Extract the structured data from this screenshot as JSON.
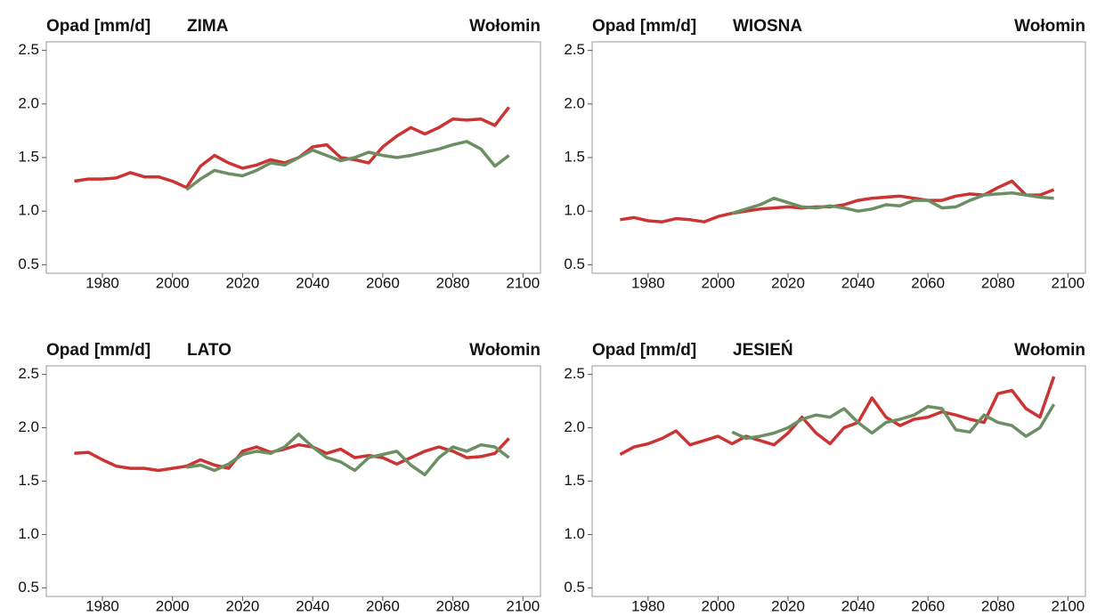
{
  "chart_data": [
    {
      "type": "line",
      "title": "Opad [mm/d]",
      "subtitle": "ZIMA",
      "location": "Wołomin",
      "x": [
        1972,
        1976,
        1980,
        1984,
        1988,
        1992,
        1996,
        2000,
        2004,
        2008,
        2012,
        2016,
        2020,
        2024,
        2028,
        2032,
        2036,
        2040,
        2044,
        2048,
        2052,
        2056,
        2060,
        2064,
        2068,
        2072,
        2076,
        2080,
        2084,
        2088,
        2092,
        2096
      ],
      "series": [
        {
          "color": "#cc3333",
          "values": [
            1.28,
            1.3,
            1.3,
            1.31,
            1.36,
            1.32,
            1.32,
            1.28,
            1.22,
            1.42,
            1.52,
            1.45,
            1.4,
            1.43,
            1.48,
            1.45,
            1.5,
            1.6,
            1.62,
            1.5,
            1.48,
            1.45,
            1.6,
            1.7,
            1.78,
            1.72,
            1.78,
            1.86,
            1.85,
            1.86,
            1.8,
            1.97
          ]
        },
        {
          "color": "#6b8e62",
          "values": [
            null,
            null,
            null,
            null,
            null,
            null,
            null,
            null,
            1.2,
            1.3,
            1.38,
            1.35,
            1.33,
            1.38,
            1.45,
            1.43,
            1.5,
            1.57,
            1.52,
            1.47,
            1.5,
            1.55,
            1.52,
            1.5,
            1.52,
            1.55,
            1.58,
            1.62,
            1.65,
            1.58,
            1.42,
            1.52
          ]
        }
      ],
      "xlim": [
        1964,
        2105
      ],
      "xticks": [
        1980,
        2000,
        2020,
        2040,
        2060,
        2080,
        2100
      ],
      "ylim": [
        0.42,
        2.58
      ],
      "yticks": [
        0.5,
        {
          "value": 1.0,
          "label": "1.0"
        },
        1.5,
        {
          "value": 2.0,
          "label": "2.0"
        },
        2.5
      ]
    },
    {
      "type": "line",
      "title": "Opad [mm/d]",
      "subtitle": "WIOSNA",
      "location": "Wołomin",
      "x": [
        1972,
        1976,
        1980,
        1984,
        1988,
        1992,
        1996,
        2000,
        2004,
        2008,
        2012,
        2016,
        2020,
        2024,
        2028,
        2032,
        2036,
        2040,
        2044,
        2048,
        2052,
        2056,
        2060,
        2064,
        2068,
        2072,
        2076,
        2080,
        2084,
        2088,
        2092,
        2096
      ],
      "series": [
        {
          "color": "#cc3333",
          "values": [
            0.92,
            0.94,
            0.91,
            0.9,
            0.93,
            0.92,
            0.9,
            0.95,
            0.98,
            1.0,
            1.02,
            1.03,
            1.04,
            1.03,
            1.04,
            1.04,
            1.06,
            1.1,
            1.12,
            1.13,
            1.14,
            1.12,
            1.1,
            1.1,
            1.14,
            1.16,
            1.15,
            1.22,
            1.28,
            1.15,
            1.15,
            1.2
          ]
        },
        {
          "color": "#6b8e62",
          "values": [
            null,
            null,
            null,
            null,
            null,
            null,
            null,
            null,
            0.98,
            1.02,
            1.06,
            1.12,
            1.08,
            1.04,
            1.03,
            1.05,
            1.03,
            1.0,
            1.02,
            1.06,
            1.05,
            1.1,
            1.1,
            1.03,
            1.04,
            1.1,
            1.15,
            1.16,
            1.17,
            1.15,
            1.13,
            1.12
          ]
        }
      ],
      "xlim": [
        1964,
        2105
      ],
      "xticks": [
        1980,
        2000,
        2020,
        2040,
        2060,
        2080,
        2100
      ],
      "ylim": [
        0.42,
        2.58
      ],
      "yticks": [
        0.5,
        {
          "value": 1.0,
          "label": "1.0"
        },
        1.5,
        {
          "value": 2.0,
          "label": "2.0"
        },
        2.5
      ]
    },
    {
      "type": "line",
      "title": "Opad [mm/d]",
      "subtitle": "LATO",
      "location": "Wołomin",
      "x": [
        1972,
        1976,
        1980,
        1984,
        1988,
        1992,
        1996,
        2000,
        2004,
        2008,
        2012,
        2016,
        2020,
        2024,
        2028,
        2032,
        2036,
        2040,
        2044,
        2048,
        2052,
        2056,
        2060,
        2064,
        2068,
        2072,
        2076,
        2080,
        2084,
        2088,
        2092,
        2096
      ],
      "series": [
        {
          "color": "#cc3333",
          "values": [
            1.76,
            1.77,
            1.7,
            1.64,
            1.62,
            1.62,
            1.6,
            1.62,
            1.64,
            1.7,
            1.65,
            1.62,
            1.78,
            1.82,
            1.77,
            1.8,
            1.84,
            1.82,
            1.76,
            1.8,
            1.72,
            1.74,
            1.72,
            1.66,
            1.72,
            1.78,
            1.82,
            1.78,
            1.72,
            1.73,
            1.76,
            1.9
          ]
        },
        {
          "color": "#6b8e62",
          "values": [
            null,
            null,
            null,
            null,
            null,
            null,
            null,
            null,
            1.63,
            1.65,
            1.6,
            1.66,
            1.75,
            1.78,
            1.76,
            1.82,
            1.94,
            1.82,
            1.72,
            1.68,
            1.6,
            1.72,
            1.75,
            1.78,
            1.65,
            1.56,
            1.72,
            1.82,
            1.78,
            1.84,
            1.82,
            1.72
          ]
        }
      ],
      "xlim": [
        1964,
        2105
      ],
      "xticks": [
        1980,
        2000,
        2020,
        2040,
        2060,
        2080,
        2100
      ],
      "ylim": [
        0.42,
        2.58
      ],
      "yticks": [
        0.5,
        {
          "value": 1.0,
          "label": "1.0"
        },
        1.5,
        {
          "value": 2.0,
          "label": "2.0"
        },
        2.5
      ]
    },
    {
      "type": "line",
      "title": "Opad [mm/d]",
      "subtitle": "JESIEŃ",
      "location": "Wołomin",
      "x": [
        1972,
        1976,
        1980,
        1984,
        1988,
        1992,
        1996,
        2000,
        2004,
        2008,
        2012,
        2016,
        2020,
        2024,
        2028,
        2032,
        2036,
        2040,
        2044,
        2048,
        2052,
        2056,
        2060,
        2064,
        2068,
        2072,
        2076,
        2080,
        2084,
        2088,
        2092,
        2096
      ],
      "series": [
        {
          "color": "#cc3333",
          "values": [
            1.75,
            1.82,
            1.85,
            1.9,
            1.97,
            1.84,
            1.88,
            1.92,
            1.85,
            1.92,
            1.88,
            1.84,
            1.95,
            2.1,
            1.95,
            1.85,
            2.0,
            2.05,
            2.28,
            2.1,
            2.02,
            2.08,
            2.1,
            2.15,
            2.12,
            2.08,
            2.05,
            2.32,
            2.35,
            2.18,
            2.1,
            2.48
          ]
        },
        {
          "color": "#6b8e62",
          "values": [
            null,
            null,
            null,
            null,
            null,
            null,
            null,
            null,
            1.96,
            1.9,
            1.92,
            1.95,
            2.0,
            2.08,
            2.12,
            2.1,
            2.18,
            2.05,
            1.95,
            2.05,
            2.08,
            2.12,
            2.2,
            2.18,
            1.98,
            1.96,
            2.12,
            2.05,
            2.02,
            1.92,
            2.0,
            2.22
          ]
        }
      ],
      "xlim": [
        1964,
        2105
      ],
      "xticks": [
        1980,
        2000,
        2020,
        2040,
        2060,
        2080,
        2100
      ],
      "ylim": [
        0.42,
        2.58
      ],
      "yticks": [
        0.5,
        {
          "value": 1.0,
          "label": "1.0"
        },
        1.5,
        {
          "value": 2.0,
          "label": "2.0"
        },
        2.5
      ]
    }
  ]
}
